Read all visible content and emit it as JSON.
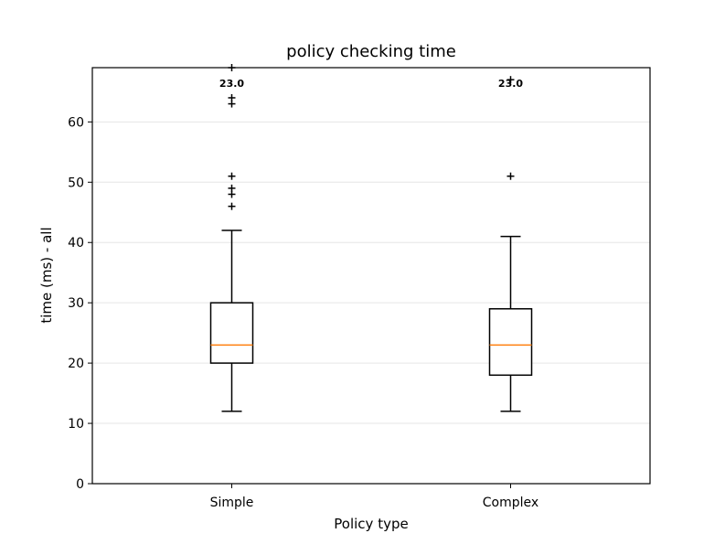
{
  "chart_data": {
    "type": "box",
    "title": "policy checking time",
    "xlabel": "Policy type",
    "ylabel": "time (ms) - all",
    "ylim": [
      0,
      69
    ],
    "yticks": [
      0,
      10,
      20,
      30,
      40,
      50,
      60
    ],
    "grid": "horizontal",
    "categories": [
      "Simple",
      "Complex"
    ],
    "boxes": [
      {
        "name": "Simple",
        "whisker_low": 12,
        "q1": 20,
        "median": 23,
        "q3": 30,
        "whisker_high": 42,
        "outliers": [
          46,
          48,
          49,
          51,
          63,
          64,
          69
        ],
        "median_label": "23.0"
      },
      {
        "name": "Complex",
        "whisker_low": 12,
        "q1": 18,
        "median": 23,
        "q3": 29,
        "whisker_high": 41,
        "outliers": [
          51,
          67
        ],
        "median_label": "23.0"
      }
    ],
    "colors": {
      "median": "#ff7f0e",
      "box": "#000000",
      "grid": "#e6e6e6"
    }
  }
}
